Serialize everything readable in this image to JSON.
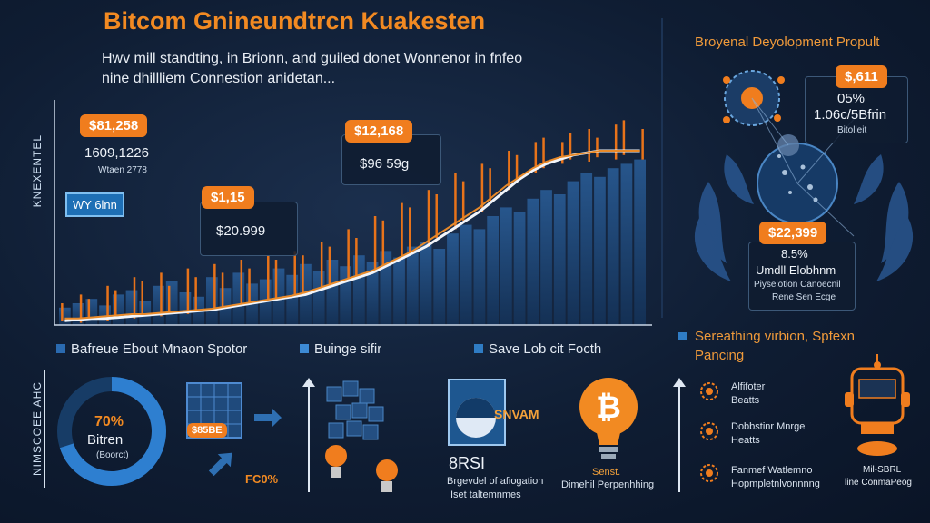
{
  "header": {
    "title": "Bitcom Gnineundtrcn Kuakesten",
    "subtitle_line1": "Hwv mill standting, in Brionn, and guiled donet Wonnenor in fnfeo",
    "subtitle_line2": "nine dhillliem Connestion anidetan..."
  },
  "main_chart": {
    "ylabel": "KNEXENTEL",
    "callouts": [
      {
        "badge": "$81,258",
        "line1": "1609,1226",
        "line2": "Wtaen 2778"
      },
      {
        "badge": "$1,15",
        "line1": "$20.999"
      },
      {
        "badge": "$12,168",
        "line1": "$96 59g"
      }
    ],
    "blue_badge": "WY 6lnn"
  },
  "chart_data": {
    "type": "line",
    "title": "",
    "xlabel": "",
    "ylabel": "KNEXENTEL",
    "ylim": [
      0,
      100
    ],
    "series": [
      {
        "values": [
          2,
          2.5,
          3,
          3,
          3.5,
          4,
          4.5,
          5,
          5.5,
          6,
          6.5,
          7,
          8,
          9,
          10,
          11,
          12,
          13,
          14,
          16,
          18,
          20,
          22,
          24,
          27,
          30,
          33,
          36,
          40,
          44,
          48,
          52,
          57,
          62,
          67,
          71,
          74,
          76,
          78,
          79,
          80,
          80,
          80,
          80
        ]
      },
      {
        "values": [
          3,
          3,
          3.5,
          4,
          4.5,
          5,
          5,
          5.5,
          6,
          6.5,
          7,
          7.5,
          8.5,
          9.5,
          10.5,
          11.5,
          12.5,
          13.5,
          15,
          17,
          19,
          21,
          23,
          25,
          28,
          31,
          34,
          38,
          42,
          46,
          50,
          54,
          59,
          64,
          68,
          72,
          75,
          77,
          78,
          79,
          80,
          80,
          80,
          80
        ]
      }
    ],
    "bars": [
      8,
      10,
      12,
      9,
      14,
      16,
      11,
      18,
      20,
      15,
      13,
      22,
      17,
      24,
      19,
      21,
      26,
      23,
      28,
      25,
      30,
      27,
      32,
      29,
      34,
      31,
      36,
      38,
      35,
      42,
      46,
      44,
      50,
      54,
      52,
      58,
      62,
      60,
      66,
      70,
      68,
      72,
      74,
      76
    ],
    "candles": [
      {
        "lo": 2,
        "hi": 10
      },
      {
        "lo": 1,
        "hi": 14
      },
      {
        "lo": 3,
        "hi": 12
      },
      {
        "lo": 2,
        "hi": 18
      },
      {
        "lo": 4,
        "hi": 16
      },
      {
        "lo": 3,
        "hi": 22
      },
      {
        "lo": 5,
        "hi": 20
      },
      {
        "lo": 4,
        "hi": 24
      },
      {
        "lo": 6,
        "hi": 18
      },
      {
        "lo": 5,
        "hi": 26
      },
      {
        "lo": 6,
        "hi": 22
      },
      {
        "lo": 7,
        "hi": 28
      },
      {
        "lo": 8,
        "hi": 24
      },
      {
        "lo": 9,
        "hi": 30
      },
      {
        "lo": 10,
        "hi": 26
      },
      {
        "lo": 11,
        "hi": 32
      },
      {
        "lo": 12,
        "hi": 30
      },
      {
        "lo": 13,
        "hi": 34
      },
      {
        "lo": 14,
        "hi": 32
      },
      {
        "lo": 16,
        "hi": 38
      },
      {
        "lo": 18,
        "hi": 36
      },
      {
        "lo": 20,
        "hi": 44
      },
      {
        "lo": 22,
        "hi": 40
      },
      {
        "lo": 24,
        "hi": 50
      },
      {
        "lo": 27,
        "hi": 48
      },
      {
        "lo": 30,
        "hi": 56
      },
      {
        "lo": 33,
        "hi": 54
      },
      {
        "lo": 36,
        "hi": 62
      },
      {
        "lo": 40,
        "hi": 60
      },
      {
        "lo": 44,
        "hi": 70
      },
      {
        "lo": 48,
        "hi": 66
      },
      {
        "lo": 52,
        "hi": 74
      },
      {
        "lo": 57,
        "hi": 72
      },
      {
        "lo": 62,
        "hi": 80
      },
      {
        "lo": 66,
        "hi": 78
      },
      {
        "lo": 70,
        "hi": 84
      },
      {
        "lo": 72,
        "hi": 86
      },
      {
        "lo": 74,
        "hi": 84
      },
      {
        "lo": 76,
        "hi": 88
      },
      {
        "lo": 75,
        "hi": 90
      },
      {
        "lo": 77,
        "hi": 86
      },
      {
        "lo": 76,
        "hi": 92
      },
      {
        "lo": 78,
        "hi": 94
      },
      {
        "lo": 76,
        "hi": 90
      }
    ],
    "colors": {
      "line_main": "#f2f5fa",
      "line_secondary": "#e88a2a",
      "bars": "#1f4d82",
      "candles": "#e8731a"
    }
  },
  "legend": [
    {
      "label": "Bafreue Ebout Mnaon Spotor",
      "color": "#2a6ab0"
    },
    {
      "label": "Buinge sifir",
      "color": "#3d8ad4"
    },
    {
      "label": "Save Lob cit Focth",
      "color": "#2f7cc4"
    }
  ],
  "right_panel": {
    "title": "Broyenal Deyolopment Propult",
    "card1": {
      "badge": "$,611",
      "pct": "05%",
      "rate": "1.06c/5Bfrin",
      "note": "Bitolleit"
    },
    "card2": {
      "badge": "$22,399",
      "pct": "8.5%",
      "line1": "Umdll Elobhnm",
      "line2": "Piyselotion Canoecnil",
      "line3": "Rene Sen Ecge"
    },
    "section_title_line1": "Sereathing virbion, Spfexn",
    "section_title_line2": "Pancing",
    "items": [
      {
        "label1": "Alfifoter",
        "label2": "Beatts"
      },
      {
        "label1": "Dobbstinr Mnrge",
        "label2": "Heatts"
      },
      {
        "label1": "Fanmef Watlemno",
        "label2": "Hopmpletnlvonnnng"
      }
    ],
    "robot_caption1": "Mil-SBRL",
    "robot_caption2": "line ConmaPeog"
  },
  "bottom": {
    "ylabel": "NIMSCOEE AHC",
    "donut": {
      "percent_text": "70%",
      "label": "Bitren",
      "sub": "(Boorct)",
      "value": 0.7
    },
    "cube_badge": "$85BE",
    "cube_caption": "FC0%",
    "card_title": "SNVAM",
    "card_code": "8RSI",
    "card_caption1": "Brgevdel of afiogation",
    "card_caption2": "Iset taltemnmes",
    "bulb_caption1": "Senst.",
    "bulb_caption2": "Dimehil Perpenhhing"
  }
}
